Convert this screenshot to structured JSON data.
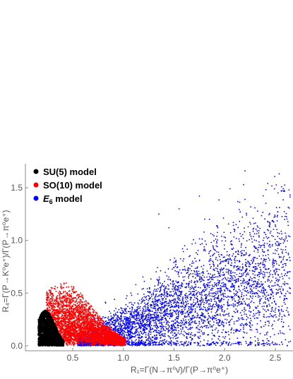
{
  "chart_data": {
    "type": "scatter",
    "xlabel": "R₁=Γ(N→π⁰ν̄)/Γ(P→π⁰e⁺)",
    "ylabel": "R₄=Γ(P→K⁰e⁺)/Γ(P→π⁰e⁺)",
    "xlim": [
      0.1,
      2.65
    ],
    "ylim": [
      -0.02,
      1.72
    ],
    "x_ticks": [
      {
        "value": 0.5,
        "label": "0.5"
      },
      {
        "value": 1.0,
        "label": "1.0"
      },
      {
        "value": 1.5,
        "label": "1.5"
      },
      {
        "value": 2.0,
        "label": "2.0"
      },
      {
        "value": 2.5,
        "label": "2.5"
      }
    ],
    "y_ticks": [
      {
        "value": 0.0,
        "label": "0.0"
      },
      {
        "value": 0.5,
        "label": "0.5"
      },
      {
        "value": 1.0,
        "label": "1.0"
      },
      {
        "value": 1.5,
        "label": "1.5"
      }
    ],
    "legend_position": "top-left",
    "grid": false,
    "series": [
      {
        "name": "E₆ model",
        "name_base": "E",
        "name_sub": "6",
        "name_rest": " model",
        "color": "#0000ff",
        "x_range": [
          0.55,
          2.65
        ],
        "y_range": [
          0.0,
          1.66
        ],
        "outliers": [
          [
            2.2,
            1.66
          ],
          [
            1.75,
            1.42
          ],
          [
            1.55,
            1.3
          ],
          [
            1.35,
            1.25
          ],
          [
            1.85,
            1.2
          ],
          [
            2.1,
            1.1
          ],
          [
            1.45,
            1.12
          ]
        ]
      },
      {
        "name": "SO(10) model",
        "color": "#ff0000",
        "x_range": [
          0.22,
          1.05
        ],
        "y_range": [
          0.0,
          0.62
        ]
      },
      {
        "name": "SU(5) model",
        "color": "#000000",
        "x_range": [
          0.15,
          0.42
        ],
        "y_range": [
          0.0,
          0.35
        ]
      }
    ]
  }
}
